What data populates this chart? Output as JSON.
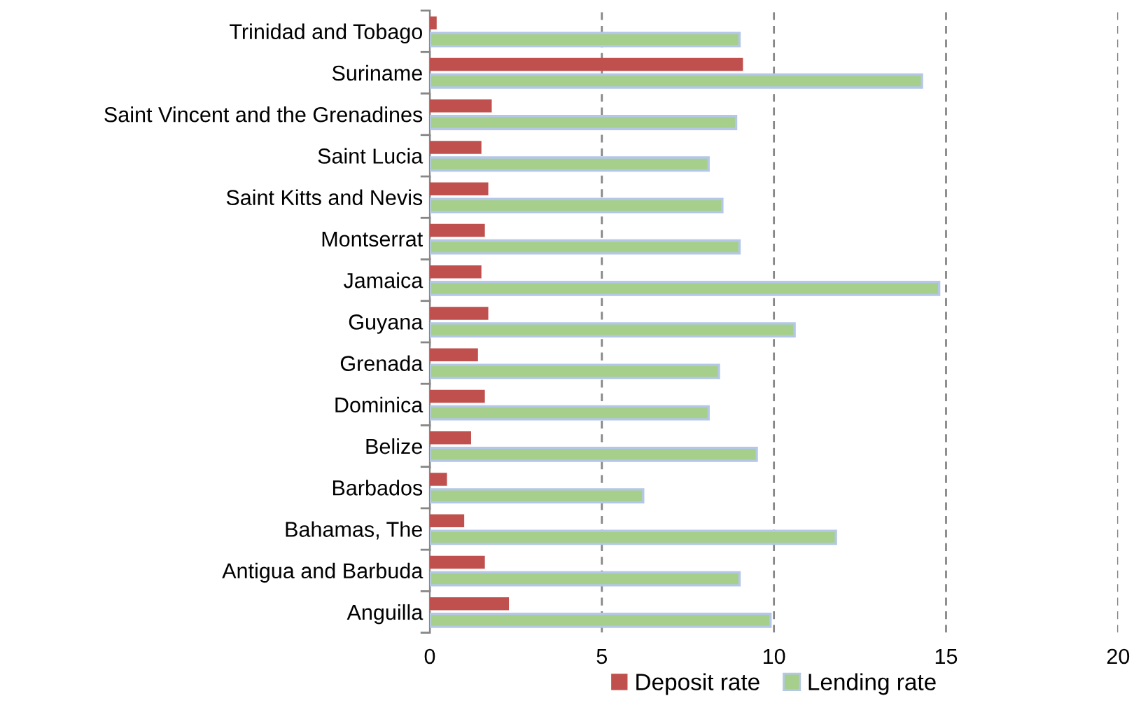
{
  "chart_data": {
    "type": "bar",
    "orientation": "horizontal",
    "categories": [
      "Trinidad and Tobago",
      "Suriname",
      "Saint Vincent and the Grenadines",
      "Saint Lucia",
      "Saint Kitts and Nevis",
      "Montserrat",
      "Jamaica",
      "Guyana",
      "Grenada",
      "Dominica",
      "Belize",
      "Barbados",
      "Bahamas, The",
      "Antigua and Barbuda",
      "Anguilla"
    ],
    "series": [
      {
        "name": "Deposit rate",
        "color": "#c0504d",
        "values": [
          0.2,
          9.1,
          1.8,
          1.5,
          1.7,
          1.6,
          1.5,
          1.7,
          1.4,
          1.6,
          1.2,
          0.5,
          1.0,
          1.6,
          2.3
        ]
      },
      {
        "name": "Lending rate",
        "color": "#a6cf8b",
        "values": [
          9.0,
          14.3,
          8.9,
          8.1,
          8.5,
          9.0,
          14.8,
          10.6,
          8.4,
          8.1,
          9.5,
          6.2,
          11.8,
          9.0,
          9.9
        ]
      }
    ],
    "xlim": [
      0,
      20
    ],
    "xticks": [
      0,
      5,
      10,
      15,
      20
    ],
    "grid": "x",
    "legend": "bottom"
  }
}
